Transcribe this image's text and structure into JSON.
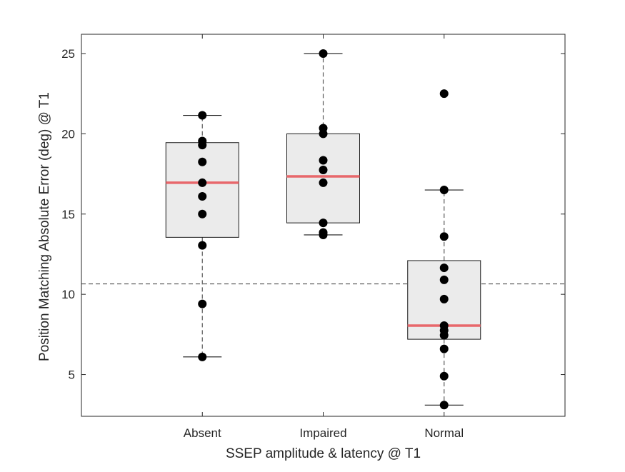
{
  "chart_data": {
    "type": "boxplot",
    "xlabel": "SSEP amplitude & latency @ T1",
    "ylabel": "Position Matching Absolute Error (deg) @ T1",
    "ylim": [
      2.4,
      26.2
    ],
    "yticks": [
      5,
      10,
      15,
      20,
      25
    ],
    "grid": false,
    "reference_line": {
      "y": 10.65,
      "style": "dashed"
    },
    "colors": {
      "box_fill": "#ebebeb",
      "median": "#e8676b",
      "points": "#000000",
      "whisker": "#595959",
      "axis": "#262626"
    },
    "categories": [
      "Absent",
      "Impaired",
      "Normal"
    ],
    "groups": [
      {
        "name": "Absent",
        "q1": 13.55,
        "median": 16.95,
        "q3": 19.45,
        "whisker_low": 6.1,
        "whisker_high": 21.15,
        "points": [
          21.15,
          19.55,
          19.3,
          18.25,
          16.95,
          16.1,
          15.0,
          13.05,
          9.4,
          6.1
        ]
      },
      {
        "name": "Impaired",
        "q1": 14.45,
        "median": 17.35,
        "q3": 20.0,
        "whisker_low": 13.7,
        "whisker_high": 25.0,
        "points": [
          25.0,
          20.35,
          20.0,
          18.35,
          17.75,
          16.95,
          14.45,
          13.85,
          13.7
        ]
      },
      {
        "name": "Normal",
        "q1": 7.2,
        "median": 8.05,
        "q3": 12.1,
        "whisker_low": 3.1,
        "whisker_high": 16.5,
        "points": [
          22.5,
          16.5,
          13.6,
          11.65,
          10.9,
          9.7,
          8.05,
          7.75,
          7.45,
          6.6,
          4.9,
          3.1
        ]
      }
    ]
  }
}
